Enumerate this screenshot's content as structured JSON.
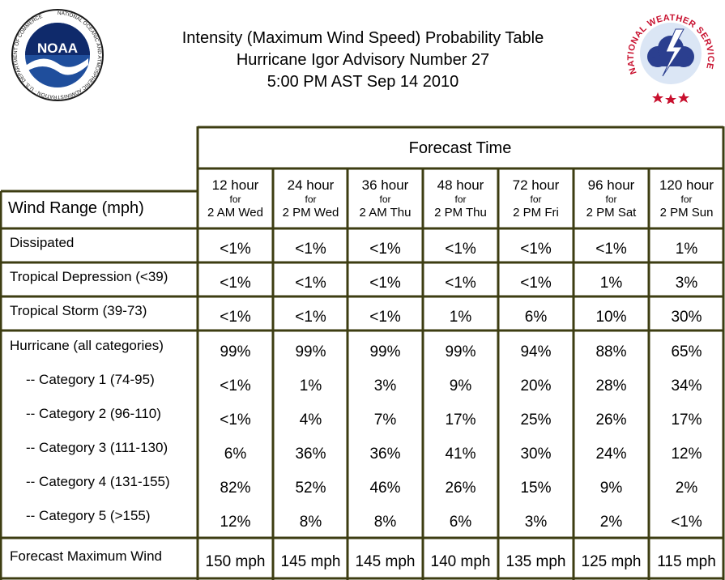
{
  "header": {
    "title_line1": "Intensity (Maximum Wind Speed) Probability Table",
    "title_line2": "Hurricane Igor Advisory Number 27",
    "title_line3": "5:00 PM AST Sep 14 2010"
  },
  "logos": {
    "noaa_text": "NOAA",
    "noaa_ring": "NATIONAL OCEANIC AND ATMOSPHERIC ADMINISTRATION · U.S. DEPARTMENT OF COMMERCE",
    "nws_ring": "NATIONAL WEATHER SERVICE"
  },
  "table": {
    "forecast_time_label": "Forecast Time",
    "wind_range_label": "Wind Range (mph)",
    "columns": [
      {
        "hours": "12 hour",
        "for": "for",
        "when": "2 AM Wed"
      },
      {
        "hours": "24 hour",
        "for": "for",
        "when": "2 PM Wed"
      },
      {
        "hours": "36 hour",
        "for": "for",
        "when": "2 AM Thu"
      },
      {
        "hours": "48 hour",
        "for": "for",
        "when": "2 PM Thu"
      },
      {
        "hours": "72 hour",
        "for": "for",
        "when": "2 PM Fri"
      },
      {
        "hours": "96 hour",
        "for": "for",
        "when": "2 PM Sat"
      },
      {
        "hours": "120 hour",
        "for": "for",
        "when": "2 PM Sun"
      }
    ],
    "rows": [
      {
        "label": "Dissipated",
        "values": [
          "<1%",
          "<1%",
          "<1%",
          "<1%",
          "<1%",
          "<1%",
          "1%"
        ]
      },
      {
        "label": "Tropical Depression (<39)",
        "values": [
          "<1%",
          "<1%",
          "<1%",
          "<1%",
          "<1%",
          "1%",
          "3%"
        ]
      },
      {
        "label": "Tropical Storm (39-73)",
        "values": [
          "<1%",
          "<1%",
          "<1%",
          "1%",
          "6%",
          "10%",
          "30%"
        ]
      },
      {
        "label": "Hurricane (all categories)",
        "values": [
          "99%",
          "99%",
          "99%",
          "99%",
          "94%",
          "88%",
          "65%"
        ]
      },
      {
        "label": "-- Category 1 (74-95)",
        "values": [
          "<1%",
          "1%",
          "3%",
          "9%",
          "20%",
          "28%",
          "34%"
        ]
      },
      {
        "label": "-- Category 2 (96-110)",
        "values": [
          "<1%",
          "4%",
          "7%",
          "17%",
          "25%",
          "26%",
          "17%"
        ]
      },
      {
        "label": "-- Category 3 (111-130)",
        "values": [
          "6%",
          "36%",
          "36%",
          "41%",
          "30%",
          "24%",
          "12%"
        ]
      },
      {
        "label": "-- Category 4 (131-155)",
        "values": [
          "82%",
          "52%",
          "46%",
          "26%",
          "15%",
          "9%",
          "2%"
        ]
      },
      {
        "label": "-- Category 5 (>155)",
        "values": [
          "12%",
          "8%",
          "8%",
          "6%",
          "3%",
          "2%",
          "<1%"
        ]
      },
      {
        "label": "Forecast Maximum Wind",
        "values": [
          "150 mph",
          "145 mph",
          "145 mph",
          "140 mph",
          "135 mph",
          "125 mph",
          "115 mph"
        ]
      }
    ]
  },
  "colors": {
    "border": "#3d3d12",
    "noaa_blue": "#1f4e9c",
    "noaa_dark": "#0f2a6b",
    "nws_red": "#c8102e",
    "nws_blue": "#2b3f8f"
  }
}
